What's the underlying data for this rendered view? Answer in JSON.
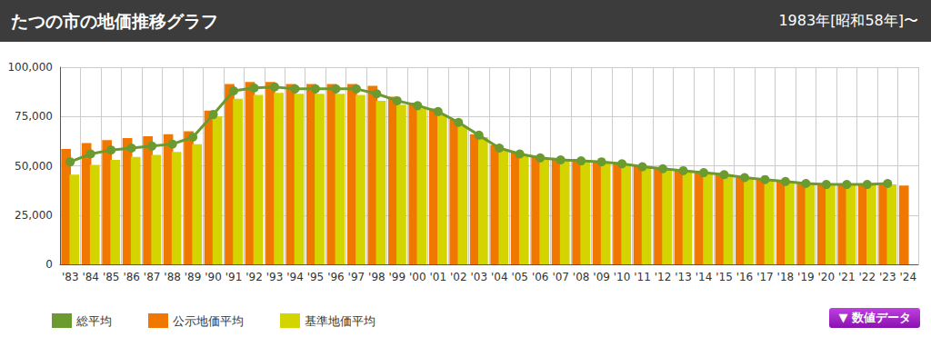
{
  "chart_data": {
    "type": "bar",
    "title": "たつの市の地価推移グラフ",
    "subtitle": "1983年[昭和58年]〜",
    "annotations": [
      "▼ 数値データ"
    ],
    "categories": [
      "'83",
      "'84",
      "'85",
      "'86",
      "'87",
      "'88",
      "'89",
      "'90",
      "'91",
      "'92",
      "'93",
      "'94",
      "'95",
      "'96",
      "'97",
      "'98",
      "'99",
      "'00",
      "'01",
      "'02",
      "'03",
      "'04",
      "'05",
      "'06",
      "'07",
      "'08",
      "'09",
      "'10",
      "'11",
      "'12",
      "'13",
      "'14",
      "'15",
      "'16",
      "'17",
      "'18",
      "'19",
      "'20",
      "'21",
      "'22",
      "'23",
      "'24"
    ],
    "series": [
      {
        "name": "総平均",
        "type": "line",
        "color": "#6b9a2e",
        "marker": "circle",
        "values": [
          52000,
          56000,
          58000,
          59000,
          60000,
          61000,
          64500,
          76000,
          88000,
          89500,
          90000,
          89000,
          89000,
          89000,
          89000,
          86500,
          83000,
          80500,
          77500,
          72000,
          65500,
          59000,
          56000,
          54000,
          53000,
          52500,
          52000,
          51000,
          49500,
          48500,
          47500,
          46500,
          45500,
          44000,
          43000,
          42000,
          41000,
          40500,
          40500,
          40500,
          41000,
          null
        ]
      },
      {
        "name": "公示地価平均",
        "type": "bar",
        "color": "#f07800",
        "values": [
          58500,
          61500,
          63000,
          64000,
          65000,
          66000,
          67500,
          78000,
          91500,
          92500,
          92500,
          91500,
          91500,
          91500,
          91500,
          90500,
          85000,
          82000,
          79000,
          73500,
          66000,
          60500,
          57000,
          55000,
          54000,
          53500,
          52500,
          51500,
          50000,
          48500,
          48000,
          46500,
          45500,
          44000,
          43000,
          42000,
          41500,
          40500,
          40500,
          40500,
          41000,
          40000
        ]
      },
      {
        "name": "基準地価平均",
        "type": "bar",
        "color": "#d4d400",
        "values": [
          45500,
          50500,
          53000,
          54500,
          55500,
          57000,
          61000,
          75000,
          84000,
          86000,
          87000,
          86500,
          86500,
          86500,
          86000,
          83000,
          81000,
          79000,
          76000,
          70000,
          64500,
          58000,
          55000,
          53500,
          52500,
          52000,
          51500,
          50500,
          49000,
          48000,
          47500,
          46000,
          45000,
          43500,
          42500,
          41500,
          41000,
          40000,
          40500,
          40500,
          40500,
          null
        ]
      }
    ],
    "ylim": [
      0,
      100000
    ],
    "yticks": [
      0,
      25000,
      50000,
      75000,
      100000
    ],
    "grid": true,
    "legend": "bottom-left"
  }
}
